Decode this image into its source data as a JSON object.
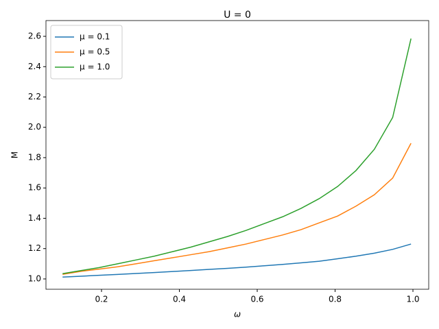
{
  "chart_data": {
    "type": "line",
    "title": "U = 0",
    "xlabel": "ω",
    "ylabel": "M",
    "x": [
      0.1,
      0.1471,
      0.1942,
      0.2413,
      0.2884,
      0.3355,
      0.3826,
      0.4297,
      0.4768,
      0.5239,
      0.5711,
      0.6182,
      0.6653,
      0.7124,
      0.7595,
      0.8066,
      0.8537,
      0.9008,
      0.9479,
      0.995
    ],
    "series": [
      {
        "name": "μ = 0.1",
        "color": "#1f77b4",
        "values": [
          1.012,
          1.018,
          1.024,
          1.03,
          1.036,
          1.042,
          1.049,
          1.056,
          1.063,
          1.07,
          1.078,
          1.087,
          1.096,
          1.106,
          1.117,
          1.133,
          1.15,
          1.17,
          1.195,
          1.23
        ]
      },
      {
        "name": "μ = 0.5",
        "color": "#ff7f0e",
        "values": [
          1.03,
          1.05,
          1.065,
          1.08,
          1.1,
          1.12,
          1.14,
          1.16,
          1.18,
          1.205,
          1.23,
          1.26,
          1.29,
          1.325,
          1.37,
          1.415,
          1.48,
          1.555,
          1.665,
          1.895
        ]
      },
      {
        "name": "μ = 1.0",
        "color": "#2ca02c",
        "values": [
          1.035,
          1.055,
          1.075,
          1.1,
          1.125,
          1.15,
          1.18,
          1.21,
          1.245,
          1.28,
          1.32,
          1.365,
          1.41,
          1.465,
          1.53,
          1.61,
          1.715,
          1.855,
          2.065,
          2.585
        ]
      }
    ],
    "xlim": [
      0.0573,
      1.0405
    ],
    "ylim": [
      0.932,
      2.704
    ],
    "xticks": [
      0.2,
      0.4,
      0.6,
      0.8,
      {
        "value": 1.0,
        "label": "1.0"
      }
    ],
    "yticks": [
      {
        "value": 1.0,
        "label": "1.0"
      },
      1.2,
      1.4,
      1.6,
      1.8,
      {
        "value": 2.0,
        "label": "2.0"
      },
      2.2,
      2.4,
      2.6
    ],
    "legend": "upper left"
  }
}
